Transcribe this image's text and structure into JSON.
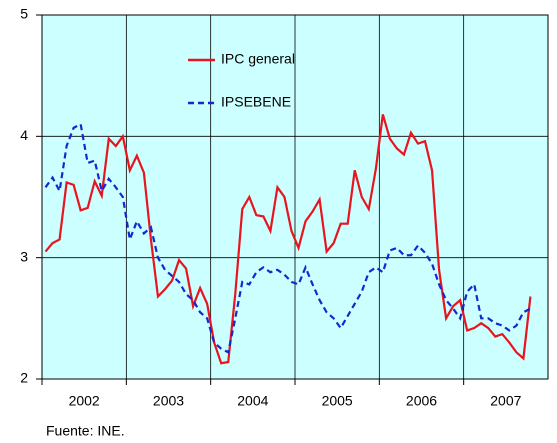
{
  "chart_data": {
    "type": "line",
    "categories": [
      "2002",
      null,
      null,
      null,
      null,
      null,
      null,
      null,
      null,
      null,
      null,
      null,
      "2003",
      null,
      null,
      null,
      null,
      null,
      null,
      null,
      null,
      null,
      null,
      null,
      "2004",
      null,
      null,
      null,
      null,
      null,
      null,
      null,
      null,
      null,
      null,
      null,
      "2005",
      null,
      null,
      null,
      null,
      null,
      null,
      null,
      null,
      null,
      null,
      null,
      "2006",
      null,
      null,
      null,
      null,
      null,
      null,
      null,
      null,
      null,
      null,
      null,
      "2007",
      null,
      null,
      null,
      null,
      null,
      null,
      null,
      null,
      null,
      null,
      null
    ],
    "series": [
      {
        "name": "IPC general",
        "color": "#e8141e",
        "dash": false,
        "values": [
          3.05,
          3.12,
          3.15,
          3.62,
          3.6,
          3.39,
          3.41,
          3.63,
          3.51,
          3.98,
          3.92,
          4.0,
          3.72,
          3.84,
          3.7,
          3.15,
          2.68,
          2.74,
          2.81,
          2.98,
          2.91,
          2.6,
          2.75,
          2.62,
          2.3,
          2.13,
          2.14,
          2.7,
          3.4,
          3.5,
          3.35,
          3.34,
          3.22,
          3.58,
          3.5,
          3.22,
          3.08,
          3.3,
          3.38,
          3.48,
          3.05,
          3.12,
          3.28,
          3.28,
          3.72,
          3.5,
          3.4,
          3.73,
          4.18,
          3.98,
          3.9,
          3.85,
          4.03,
          3.94,
          3.96,
          3.72,
          2.9,
          2.5,
          2.6,
          2.65,
          2.4,
          2.42,
          2.46,
          2.42,
          2.35,
          2.37,
          2.3,
          2.22,
          2.17,
          2.68,
          null,
          null
        ]
      },
      {
        "name": "IPSEBENE",
        "color": "#1428d2",
        "dash": true,
        "values": [
          3.58,
          3.66,
          3.55,
          3.92,
          4.07,
          4.1,
          3.78,
          3.8,
          3.55,
          3.65,
          3.58,
          3.5,
          3.15,
          3.3,
          3.2,
          3.25,
          3.0,
          2.9,
          2.85,
          2.8,
          2.7,
          2.65,
          2.55,
          2.5,
          2.3,
          2.25,
          2.22,
          2.5,
          2.8,
          2.78,
          2.88,
          2.92,
          2.88,
          2.9,
          2.86,
          2.8,
          2.78,
          2.92,
          2.78,
          2.65,
          2.55,
          2.5,
          2.42,
          2.52,
          2.62,
          2.72,
          2.88,
          2.92,
          2.88,
          3.06,
          3.08,
          3.02,
          3.02,
          3.1,
          3.04,
          2.95,
          2.78,
          2.65,
          2.58,
          2.5,
          2.72,
          2.78,
          2.5,
          2.5,
          2.46,
          2.44,
          2.4,
          2.44,
          2.55,
          2.58,
          null,
          null
        ]
      }
    ],
    "ylim": [
      2,
      5
    ],
    "yticks": [
      2,
      3,
      4,
      5
    ],
    "grid": true,
    "legend": "top",
    "plot_background": "#ccffff",
    "note": "Fuente: INE."
  }
}
